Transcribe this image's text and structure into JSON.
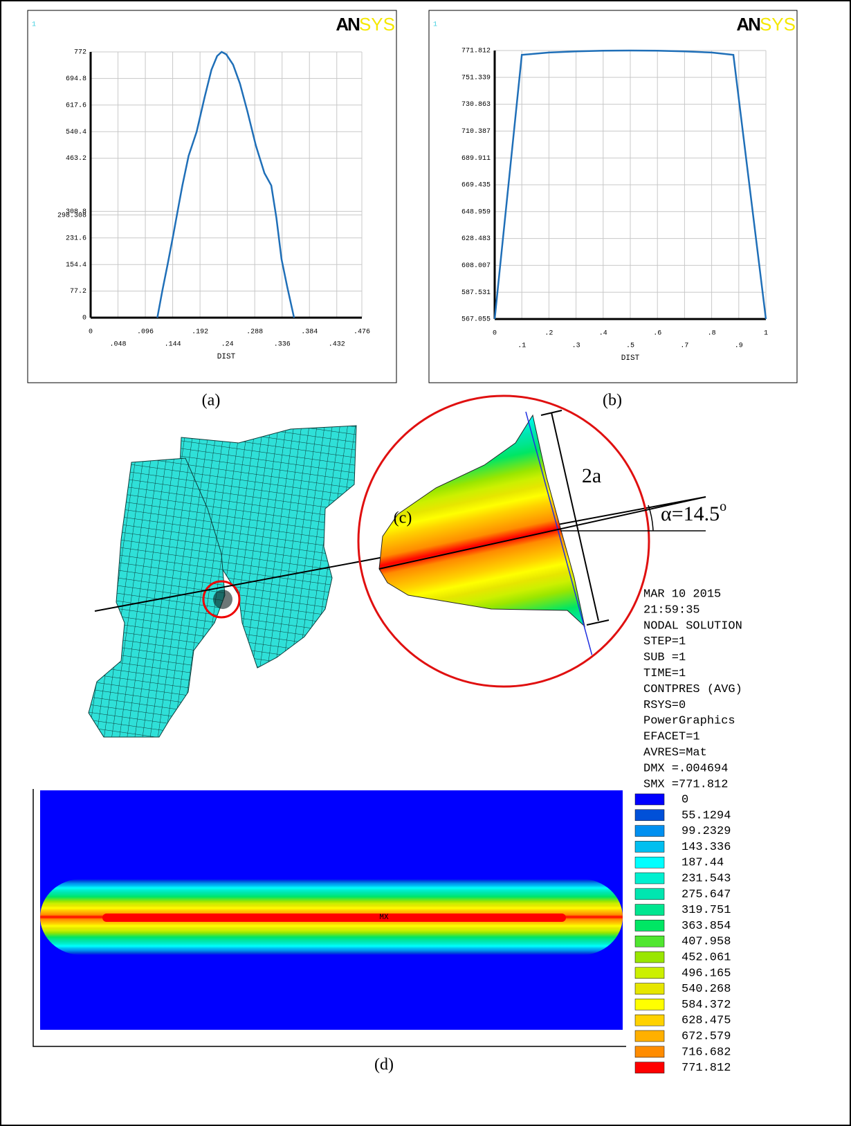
{
  "chart_data": [
    {
      "type": "line",
      "window_number": "1",
      "logo": [
        "AN",
        "SYS"
      ],
      "caption": "(a)",
      "xlabel": "DIST",
      "color": "#1f6fb8",
      "grid": true,
      "xlim": [
        0,
        0.476
      ],
      "xticks": [
        0,
        {
          "value": 0.048,
          "label": ".048"
        },
        {
          "value": 0.096,
          "label": ".096"
        },
        {
          "value": 0.144,
          "label": ".144"
        },
        {
          "value": 0.192,
          "label": ".192"
        },
        {
          "value": 0.24,
          "label": ".24"
        },
        {
          "value": 0.288,
          "label": ".288"
        },
        {
          "value": 0.336,
          "label": ".336"
        },
        {
          "value": 0.384,
          "label": ".384"
        },
        {
          "value": 0.432,
          "label": ".432"
        },
        {
          "value": 0.476,
          "label": ".476"
        }
      ],
      "ylim": [
        0,
        772
      ],
      "yticks": [
        0,
        77.2,
        154.4,
        231.6,
        298.308,
        308.8,
        463.2,
        540.4,
        617.6,
        694.8,
        772
      ],
      "x": [
        0.117,
        0.126,
        0.135,
        0.145,
        0.155,
        0.161,
        0.172,
        0.186,
        0.2,
        0.212,
        0.222,
        0.23,
        0.238,
        0.25,
        0.262,
        0.275,
        0.29,
        0.305,
        0.317,
        0.326,
        0.335,
        0.345,
        0.357
      ],
      "values": [
        0,
        80,
        154,
        240,
        330,
        384,
        470,
        540,
        640,
        720,
        760,
        772,
        765,
        735,
        680,
        600,
        500,
        420,
        384,
        290,
        170,
        90,
        0
      ]
    },
    {
      "type": "line",
      "window_number": "1",
      "logo": [
        "AN",
        "SYS"
      ],
      "caption": "(b)",
      "xlabel": "DIST",
      "color": "#1f6fb8",
      "grid": true,
      "xlim": [
        0,
        1
      ],
      "xticks": [
        0,
        {
          "value": 0.1,
          "label": ".1"
        },
        {
          "value": 0.2,
          "label": ".2"
        },
        {
          "value": 0.3,
          "label": ".3"
        },
        {
          "value": 0.4,
          "label": ".4"
        },
        {
          "value": 0.5,
          "label": ".5"
        },
        {
          "value": 0.6,
          "label": ".6"
        },
        {
          "value": 0.7,
          "label": ".7"
        },
        {
          "value": 0.8,
          "label": ".8"
        },
        {
          "value": 0.9,
          "label": ".9"
        },
        1
      ],
      "ylim": [
        567.055,
        771.812
      ],
      "yticks": [
        567.055,
        587.531,
        608.007,
        628.483,
        648.959,
        669.435,
        689.911,
        710.387,
        730.863,
        751.339,
        771.812
      ],
      "x": [
        0,
        0.1,
        0.2,
        0.3,
        0.4,
        0.5,
        0.6,
        0.7,
        0.8,
        0.88,
        1
      ],
      "values": [
        567.055,
        768.5,
        770.3,
        771.2,
        771.7,
        771.812,
        771.7,
        771.2,
        770.3,
        768.5,
        567.055
      ]
    }
  ],
  "figure_c": {
    "caption": "(c)",
    "width_label": "2a",
    "angle_label": [
      "α=14.5",
      "o"
    ]
  },
  "figure_d": {
    "caption": "(d)",
    "max_label": "MX"
  },
  "contour_legend": {
    "info": [
      "MAR 10 2015",
      "21:59:35",
      "NODAL SOLUTION",
      "STEP=1",
      "SUB =1",
      "TIME=1",
      "CONTPRES (AVG)",
      "RSYS=0",
      "PowerGraphics",
      "EFACET=1",
      "AVRES=Mat",
      "DMX =.004694",
      "SMX =771.812"
    ],
    "levels": [
      0,
      55.1294,
      99.2329,
      143.336,
      187.44,
      231.543,
      275.647,
      319.751,
      363.854,
      407.958,
      452.061,
      496.165,
      540.268,
      584.372,
      628.475,
      672.579,
      716.682,
      771.812
    ],
    "colors": [
      "#0000ff",
      "#0050d8",
      "#0090f0",
      "#00bff0",
      "#00ffff",
      "#00f0d0",
      "#00e6b0",
      "#00e690",
      "#00e664",
      "#50e630",
      "#9ae600",
      "#ccf000",
      "#e6e600",
      "#ffff00",
      "#ffd200",
      "#ffb000",
      "#ff8c00",
      "#ff0000"
    ]
  }
}
